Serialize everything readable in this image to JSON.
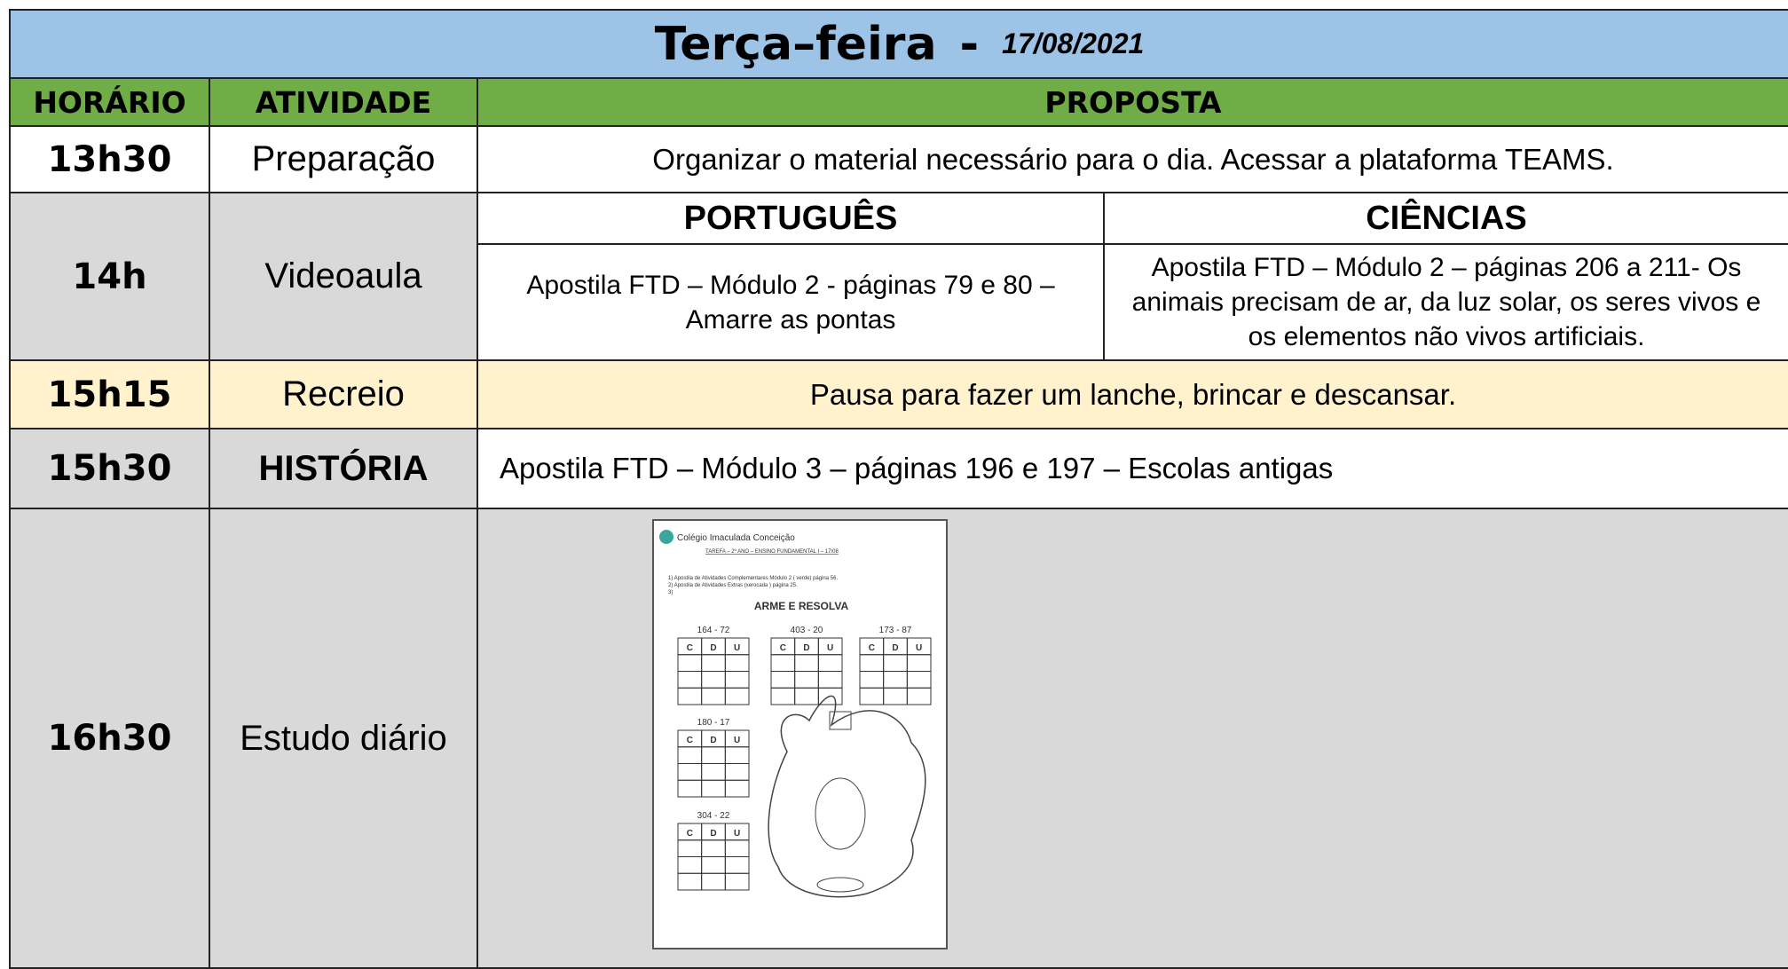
{
  "header": {
    "title": "Terça–feira",
    "separator": "-",
    "date": "17/08/2021"
  },
  "table": {
    "columns": [
      "HORÁRIO",
      "ATIVIDADE",
      "PROPOSTA"
    ],
    "rows": [
      {
        "time": "13h30",
        "activity": "Preparação",
        "proposal": "Organizar o material necessário para o dia. Acessar a plataforma TEAMS."
      },
      {
        "time": "14h",
        "activity": "Videoaula",
        "subjects": [
          {
            "name": "PORTUGUÊS",
            "text": "Apostila FTD – Módulo 2 - páginas 79 e 80 – Amarre as pontas"
          },
          {
            "name": "CIÊNCIAS",
            "text": "Apostila FTD – Módulo 2 – páginas 206 a 211- Os animais precisam de ar, da luz solar, os seres vivos e os elementos não vivos artificiais."
          }
        ]
      },
      {
        "time": "15h15",
        "activity": "Recreio",
        "proposal": "Pausa para fazer um lanche, brincar e descansar."
      },
      {
        "time": "15h30",
        "activity": "HISTÓRIA",
        "proposal": "Apostila FTD – Módulo 3 – páginas 196 e 197 – Escolas antigas"
      },
      {
        "time": "16h30",
        "activity": "Estudo diário",
        "worksheet": {
          "school": "Colégio Imaculada Conceição",
          "heading": "TAREFA – 2º ANO – ENSINO FUNDAMENTAL I – 17/08",
          "items": [
            "1) Apostila de Atividades Complementares Módulo 2 ( verde) página 56.",
            "2) Apostila de Atividades Extras (xerocada ) página 25.",
            "3)"
          ],
          "instruction": "ARME E RESOLVA",
          "problems": [
            "164 - 72",
            "403 - 20",
            "173 - 87",
            "180 - 17",
            "304 - 22"
          ],
          "place_values": [
            "C",
            "D",
            "U"
          ]
        }
      }
    ]
  }
}
